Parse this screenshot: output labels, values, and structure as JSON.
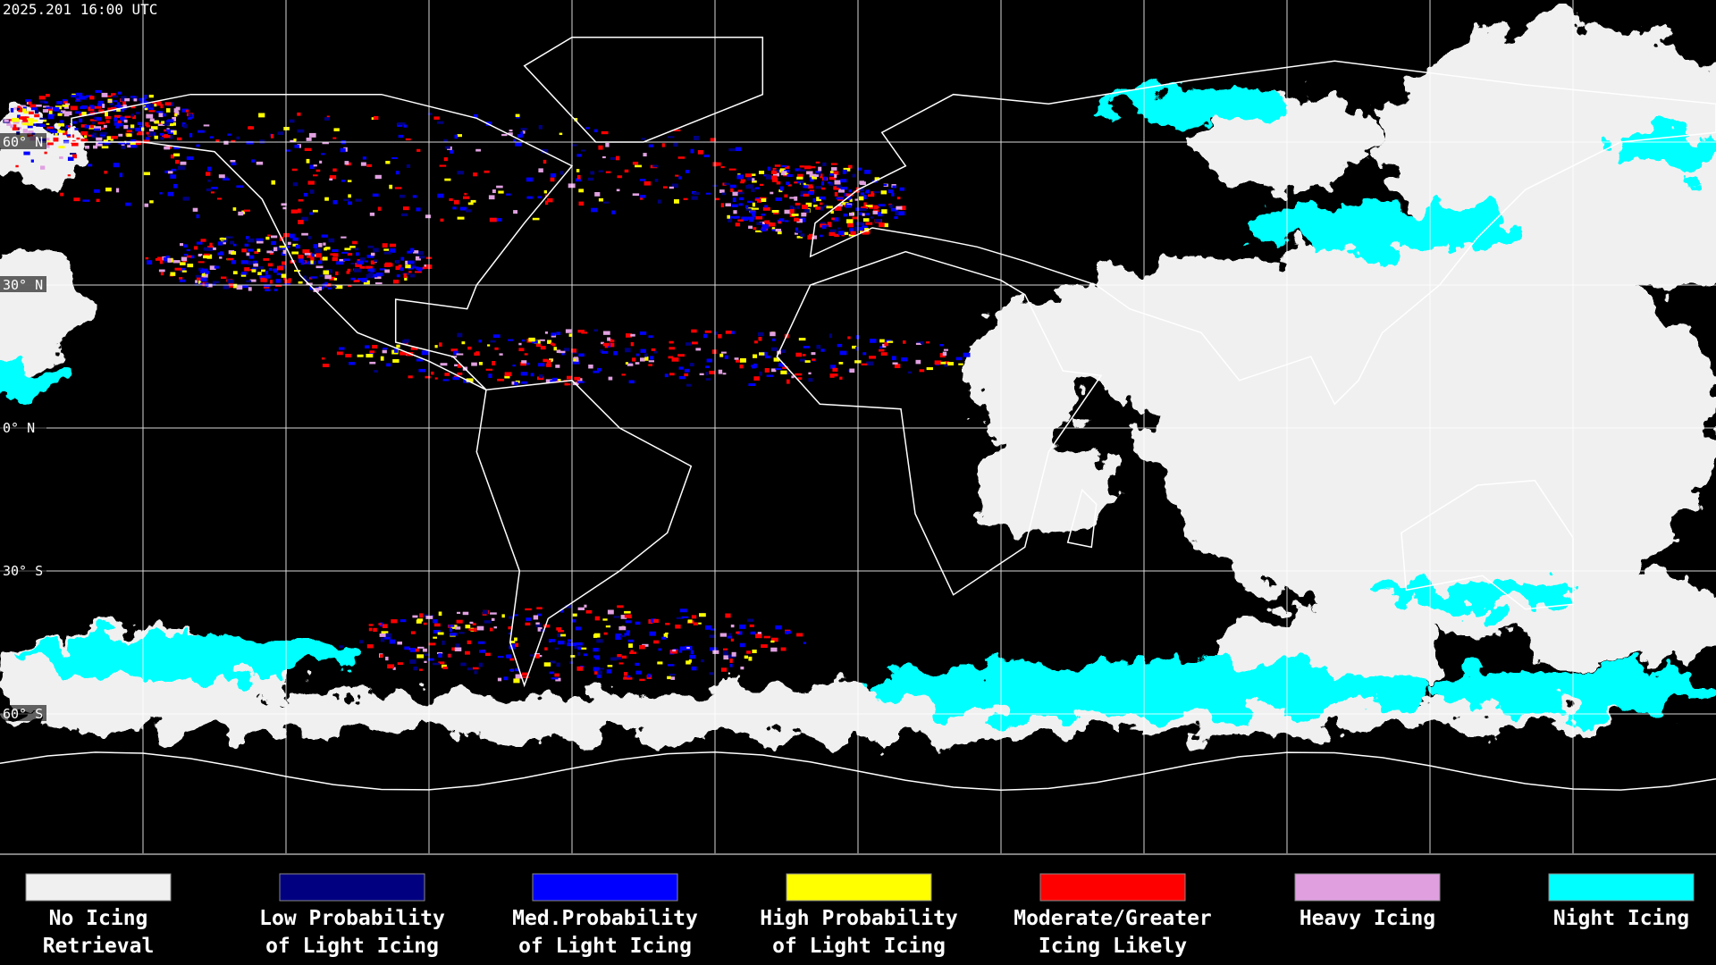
{
  "timestamp": "2025.201 16:00 UTC",
  "latitude_labels": [
    "60° N",
    "30° N",
    "0° N",
    "30° S",
    "60° S"
  ],
  "legend": [
    {
      "lines": [
        "No Icing",
        "Retrieval"
      ],
      "color": "#f0f0f0"
    },
    {
      "lines": [
        "Low Probability",
        "of Light Icing"
      ],
      "color": "#000080"
    },
    {
      "lines": [
        "Med.Probability",
        "of Light Icing"
      ],
      "color": "#0000ff"
    },
    {
      "lines": [
        "High Probability",
        "of Light Icing"
      ],
      "color": "#ffff00"
    },
    {
      "lines": [
        "Moderate/Greater",
        "Icing Likely"
      ],
      "color": "#ff0000"
    },
    {
      "lines": [
        "Heavy Icing"
      ],
      "color": "#e0a0e0"
    },
    {
      "lines": [
        "Night Icing"
      ],
      "color": "#00ffff"
    }
  ]
}
